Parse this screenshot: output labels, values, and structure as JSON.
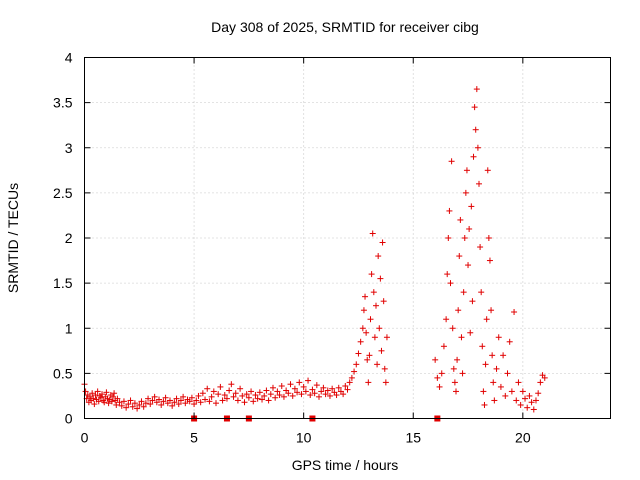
{
  "chart_data": {
    "type": "scatter",
    "title": "Day 308 of 2025, SRMTID for receiver cibg",
    "xlabel": "GPS time / hours",
    "ylabel": "SRMTID / TECUs",
    "xlim": [
      0,
      24
    ],
    "ylim": [
      0,
      4
    ],
    "x_ticks": [
      0,
      5,
      10,
      15,
      20
    ],
    "x_tick_labels": [
      "0",
      "5",
      "10",
      "15",
      "20"
    ],
    "y_ticks": [
      0,
      0.5,
      1,
      1.5,
      2,
      2.5,
      3,
      3.5,
      4
    ],
    "y_tick_labels": [
      "0",
      "0.5",
      "1",
      "1.5",
      "2",
      "2.5",
      "3",
      "3.5",
      "4"
    ],
    "grid": true,
    "marker": "+",
    "marker_color": "#e00000",
    "series": [
      {
        "name": "SRMTID",
        "points": [
          [
            0.0,
            0.38
          ],
          [
            0.05,
            0.3
          ],
          [
            0.1,
            0.22
          ],
          [
            0.15,
            0.26
          ],
          [
            0.2,
            0.18
          ],
          [
            0.25,
            0.24
          ],
          [
            0.3,
            0.2
          ],
          [
            0.35,
            0.28
          ],
          [
            0.4,
            0.22
          ],
          [
            0.45,
            0.16
          ],
          [
            0.5,
            0.26
          ],
          [
            0.55,
            0.21
          ],
          [
            0.6,
            0.3
          ],
          [
            0.65,
            0.19
          ],
          [
            0.7,
            0.25
          ],
          [
            0.75,
            0.23
          ],
          [
            0.8,
            0.27
          ],
          [
            0.85,
            0.2
          ],
          [
            0.9,
            0.18
          ],
          [
            0.95,
            0.24
          ],
          [
            1.0,
            0.29
          ],
          [
            1.05,
            0.22
          ],
          [
            1.1,
            0.17
          ],
          [
            1.15,
            0.21
          ],
          [
            1.2,
            0.26
          ],
          [
            1.25,
            0.19
          ],
          [
            1.3,
            0.24
          ],
          [
            1.35,
            0.28
          ],
          [
            1.4,
            0.2
          ],
          [
            1.45,
            0.15
          ],
          [
            1.5,
            0.22
          ],
          [
            1.6,
            0.18
          ],
          [
            1.7,
            0.14
          ],
          [
            1.8,
            0.19
          ],
          [
            1.9,
            0.12
          ],
          [
            2.0,
            0.16
          ],
          [
            2.1,
            0.2
          ],
          [
            2.2,
            0.13
          ],
          [
            2.3,
            0.17
          ],
          [
            2.4,
            0.11
          ],
          [
            2.5,
            0.15
          ],
          [
            2.6,
            0.19
          ],
          [
            2.7,
            0.13
          ],
          [
            2.8,
            0.17
          ],
          [
            2.9,
            0.22
          ],
          [
            3.0,
            0.16
          ],
          [
            3.1,
            0.2
          ],
          [
            3.2,
            0.24
          ],
          [
            3.3,
            0.18
          ],
          [
            3.4,
            0.21
          ],
          [
            3.5,
            0.15
          ],
          [
            3.6,
            0.19
          ],
          [
            3.7,
            0.23
          ],
          [
            3.8,
            0.17
          ],
          [
            3.9,
            0.2
          ],
          [
            4.0,
            0.14
          ],
          [
            4.1,
            0.18
          ],
          [
            4.2,
            0.22
          ],
          [
            4.3,
            0.16
          ],
          [
            4.4,
            0.2
          ],
          [
            4.5,
            0.24
          ],
          [
            4.6,
            0.17
          ],
          [
            4.7,
            0.21
          ],
          [
            4.8,
            0.19
          ],
          [
            4.9,
            0.23
          ],
          [
            5.0,
            0.16
          ],
          [
            5.1,
            0.2
          ],
          [
            5.2,
            0.25
          ],
          [
            5.3,
            0.18
          ],
          [
            5.4,
            0.28
          ],
          [
            5.5,
            0.21
          ],
          [
            5.6,
            0.33
          ],
          [
            5.7,
            0.19
          ],
          [
            5.8,
            0.24
          ],
          [
            5.9,
            0.3
          ],
          [
            6.0,
            0.17
          ],
          [
            6.1,
            0.27
          ],
          [
            6.2,
            0.35
          ],
          [
            6.3,
            0.2
          ],
          [
            6.4,
            0.26
          ],
          [
            6.5,
            0.22
          ],
          [
            6.6,
            0.31
          ],
          [
            6.7,
            0.38
          ],
          [
            6.8,
            0.24
          ],
          [
            6.9,
            0.28
          ],
          [
            7.0,
            0.2
          ],
          [
            7.1,
            0.33
          ],
          [
            7.2,
            0.25
          ],
          [
            7.3,
            0.18
          ],
          [
            7.4,
            0.27
          ],
          [
            7.5,
            0.23
          ],
          [
            7.6,
            0.3
          ],
          [
            7.7,
            0.19
          ],
          [
            7.8,
            0.26
          ],
          [
            7.9,
            0.22
          ],
          [
            8.0,
            0.29
          ],
          [
            8.1,
            0.21
          ],
          [
            8.2,
            0.25
          ],
          [
            8.3,
            0.31
          ],
          [
            8.4,
            0.2
          ],
          [
            8.5,
            0.27
          ],
          [
            8.6,
            0.34
          ],
          [
            8.7,
            0.23
          ],
          [
            8.8,
            0.3
          ],
          [
            8.9,
            0.26
          ],
          [
            9.0,
            0.36
          ],
          [
            9.1,
            0.24
          ],
          [
            9.2,
            0.31
          ],
          [
            9.3,
            0.28
          ],
          [
            9.4,
            0.38
          ],
          [
            9.5,
            0.25
          ],
          [
            9.6,
            0.33
          ],
          [
            9.7,
            0.29
          ],
          [
            9.8,
            0.4
          ],
          [
            9.9,
            0.27
          ],
          [
            10.0,
            0.35
          ],
          [
            10.1,
            0.3
          ],
          [
            10.2,
            0.42
          ],
          [
            10.3,
            0.26
          ],
          [
            10.4,
            0.32
          ],
          [
            10.5,
            0.28
          ],
          [
            10.6,
            0.37
          ],
          [
            10.7,
            0.24
          ],
          [
            10.8,
            0.3
          ],
          [
            10.9,
            0.34
          ],
          [
            11.0,
            0.27
          ],
          [
            11.1,
            0.31
          ],
          [
            11.2,
            0.25
          ],
          [
            11.3,
            0.33
          ],
          [
            11.4,
            0.29
          ],
          [
            11.5,
            0.26
          ],
          [
            11.6,
            0.34
          ],
          [
            11.7,
            0.3
          ],
          [
            11.8,
            0.27
          ],
          [
            11.9,
            0.36
          ],
          [
            12.0,
            0.32
          ],
          [
            12.1,
            0.4
          ],
          [
            12.2,
            0.45
          ],
          [
            12.3,
            0.52
          ],
          [
            12.4,
            0.6
          ],
          [
            12.5,
            0.72
          ],
          [
            12.6,
            0.85
          ],
          [
            12.7,
            1.0
          ],
          [
            12.75,
            1.2
          ],
          [
            12.8,
            1.35
          ],
          [
            12.85,
            0.95
          ],
          [
            12.9,
            0.65
          ],
          [
            12.95,
            0.4
          ],
          [
            13.0,
            0.7
          ],
          [
            13.05,
            1.1
          ],
          [
            13.1,
            1.6
          ],
          [
            13.15,
            2.05
          ],
          [
            13.2,
            1.4
          ],
          [
            13.25,
            0.9
          ],
          [
            13.3,
            1.25
          ],
          [
            13.35,
            0.6
          ],
          [
            13.4,
            1.8
          ],
          [
            13.45,
            1.0
          ],
          [
            13.5,
            1.55
          ],
          [
            13.55,
            0.75
          ],
          [
            13.6,
            1.95
          ],
          [
            13.65,
            1.3
          ],
          [
            13.7,
            0.55
          ],
          [
            13.75,
            0.4
          ],
          [
            13.8,
            0.9
          ],
          [
            16.0,
            0.65
          ],
          [
            16.1,
            0.45
          ],
          [
            16.2,
            0.35
          ],
          [
            16.3,
            0.5
          ],
          [
            16.4,
            0.8
          ],
          [
            16.5,
            1.1
          ],
          [
            16.55,
            1.6
          ],
          [
            16.6,
            2.0
          ],
          [
            16.65,
            2.3
          ],
          [
            16.7,
            1.5
          ],
          [
            16.75,
            2.85
          ],
          [
            16.8,
            1.0
          ],
          [
            16.85,
            0.55
          ],
          [
            16.9,
            0.4
          ],
          [
            16.95,
            0.3
          ],
          [
            17.0,
            0.65
          ],
          [
            17.05,
            1.2
          ],
          [
            17.1,
            1.8
          ],
          [
            17.15,
            2.2
          ],
          [
            17.2,
            0.9
          ],
          [
            17.25,
            0.5
          ],
          [
            17.3,
            1.4
          ],
          [
            17.35,
            2.0
          ],
          [
            17.4,
            2.5
          ],
          [
            17.45,
            2.75
          ],
          [
            17.5,
            1.7
          ],
          [
            17.55,
            2.1
          ],
          [
            17.6,
            0.95
          ],
          [
            17.65,
            2.35
          ],
          [
            17.7,
            1.3
          ],
          [
            17.75,
            2.9
          ],
          [
            17.8,
            3.45
          ],
          [
            17.85,
            3.2
          ],
          [
            17.9,
            3.65
          ],
          [
            17.95,
            3.0
          ],
          [
            18.0,
            2.6
          ],
          [
            18.05,
            1.9
          ],
          [
            18.1,
            1.4
          ],
          [
            18.15,
            0.8
          ],
          [
            18.2,
            0.3
          ],
          [
            18.25,
            0.15
          ],
          [
            18.3,
            0.6
          ],
          [
            18.35,
            1.1
          ],
          [
            18.4,
            2.75
          ],
          [
            18.45,
            2.0
          ],
          [
            18.5,
            1.75
          ],
          [
            18.55,
            1.2
          ],
          [
            18.6,
            0.7
          ],
          [
            18.65,
            0.4
          ],
          [
            18.7,
            0.2
          ],
          [
            18.8,
            0.55
          ],
          [
            18.9,
            0.9
          ],
          [
            19.0,
            0.35
          ],
          [
            19.1,
            0.7
          ],
          [
            19.2,
            0.25
          ],
          [
            19.3,
            0.5
          ],
          [
            19.4,
            0.85
          ],
          [
            19.5,
            0.3
          ],
          [
            19.6,
            1.18
          ],
          [
            19.7,
            0.2
          ],
          [
            19.8,
            0.4
          ],
          [
            19.9,
            0.15
          ],
          [
            20.0,
            0.3
          ],
          [
            20.1,
            0.22
          ],
          [
            20.2,
            0.12
          ],
          [
            20.3,
            0.25
          ],
          [
            20.4,
            0.18
          ],
          [
            20.5,
            0.1
          ],
          [
            20.6,
            0.2
          ],
          [
            20.7,
            0.28
          ],
          [
            20.8,
            0.4
          ],
          [
            20.9,
            0.48
          ],
          [
            21.0,
            0.45
          ]
        ]
      }
    ],
    "gap_markers_x": [
      5.0,
      6.5,
      7.5,
      10.4,
      16.1
    ]
  }
}
